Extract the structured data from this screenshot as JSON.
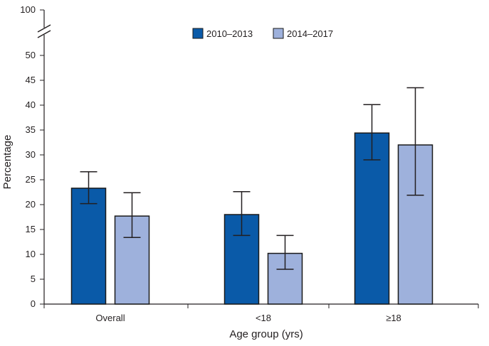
{
  "colors": {
    "series_0": "#0a5aa8",
    "series_1": "#9eb1dc",
    "axis": "#231f20",
    "bar_stroke": "#1a1a1a"
  },
  "chart_data": {
    "type": "bar",
    "title": "",
    "xlabel": "Age group (yrs)",
    "ylabel": "Percentage",
    "categories": [
      "Overall",
      "<18",
      "≥18"
    ],
    "series": [
      {
        "name": "2010–2013",
        "values": [
          23.3,
          18.0,
          34.4
        ],
        "error_low": [
          20.2,
          13.8,
          29.0
        ],
        "error_high": [
          26.6,
          22.6,
          40.1
        ]
      },
      {
        "name": "2014–2017",
        "values": [
          17.7,
          10.2,
          32.0
        ],
        "error_low": [
          13.4,
          7.0,
          21.9
        ],
        "error_high": [
          22.4,
          13.8,
          43.5
        ]
      }
    ],
    "ylim": [
      0,
      50
    ],
    "y_ticks": [
      "0",
      "5",
      "10",
      "15",
      "20",
      "25",
      "30",
      "35",
      "40",
      "45",
      "50"
    ],
    "y_break_top_label": "100",
    "axis_break": true,
    "grid": false,
    "legend_position": "top-center"
  }
}
